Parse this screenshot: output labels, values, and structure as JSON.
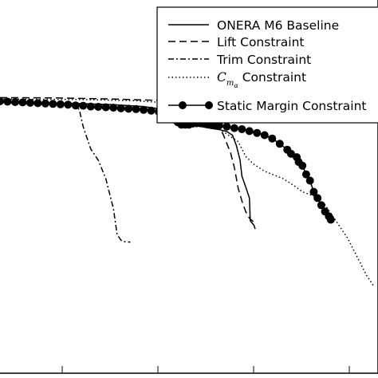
{
  "chart_data": {
    "type": "line",
    "xlim": [
      0,
      1
    ],
    "ylim": [
      0,
      1
    ],
    "grid": false,
    "legend_position": "top-right",
    "series": [
      {
        "name": "ONERA M6 Baseline",
        "style": "solid",
        "markers": false,
        "points": [
          [
            0.0,
            0.725
          ],
          [
            0.1,
            0.724
          ],
          [
            0.2,
            0.722
          ],
          [
            0.3,
            0.719
          ],
          [
            0.38,
            0.714
          ],
          [
            0.42,
            0.708
          ],
          [
            0.45,
            0.695
          ],
          [
            0.48,
            0.677
          ],
          [
            0.52,
            0.662
          ],
          [
            0.56,
            0.655
          ],
          [
            0.58,
            0.652
          ],
          [
            0.6,
            0.647
          ],
          [
            0.615,
            0.637
          ],
          [
            0.625,
            0.61
          ],
          [
            0.635,
            0.57
          ],
          [
            0.64,
            0.527
          ],
          [
            0.65,
            0.498
          ],
          [
            0.66,
            0.468
          ],
          [
            0.662,
            0.407
          ],
          [
            0.672,
            0.395
          ],
          [
            0.675,
            0.385
          ]
        ]
      },
      {
        "name": "Lift Constraint",
        "style": "dashed",
        "markers": false,
        "points": [
          [
            0.0,
            0.738
          ],
          [
            0.15,
            0.737
          ],
          [
            0.3,
            0.734
          ],
          [
            0.4,
            0.731
          ],
          [
            0.46,
            0.728
          ],
          [
            0.5,
            0.722
          ],
          [
            0.53,
            0.712
          ],
          [
            0.55,
            0.698
          ],
          [
            0.57,
            0.675
          ],
          [
            0.59,
            0.64
          ],
          [
            0.61,
            0.59
          ],
          [
            0.62,
            0.55
          ],
          [
            0.63,
            0.495
          ],
          [
            0.64,
            0.46
          ],
          [
            0.65,
            0.432
          ],
          [
            0.66,
            0.414
          ],
          [
            0.67,
            0.405
          ]
        ]
      },
      {
        "name": "Trim Constraint",
        "style": "dashdot",
        "markers": false,
        "points": [
          [
            0.0,
            0.726
          ],
          [
            0.1,
            0.724
          ],
          [
            0.17,
            0.721
          ],
          [
            0.2,
            0.718
          ],
          [
            0.21,
            0.705
          ],
          [
            0.22,
            0.66
          ],
          [
            0.24,
            0.6
          ],
          [
            0.26,
            0.57
          ],
          [
            0.28,
            0.52
          ],
          [
            0.3,
            0.44
          ],
          [
            0.31,
            0.37
          ],
          [
            0.32,
            0.355
          ],
          [
            0.33,
            0.351
          ],
          [
            0.345,
            0.35
          ]
        ]
      },
      {
        "name": "$C_{m_\\alpha}$ Constraint",
        "style": "dotted",
        "markers": false,
        "points": [
          [
            0.0,
            0.734
          ],
          [
            0.2,
            0.733
          ],
          [
            0.35,
            0.73
          ],
          [
            0.44,
            0.724
          ],
          [
            0.5,
            0.705
          ],
          [
            0.55,
            0.678
          ],
          [
            0.6,
            0.64
          ],
          [
            0.63,
            0.62
          ],
          [
            0.65,
            0.58
          ],
          [
            0.67,
            0.56
          ],
          [
            0.7,
            0.54
          ],
          [
            0.75,
            0.52
          ],
          [
            0.78,
            0.5
          ],
          [
            0.8,
            0.485
          ],
          [
            0.84,
            0.47
          ],
          [
            0.86,
            0.45
          ],
          [
            0.88,
            0.42
          ],
          [
            0.92,
            0.36
          ],
          [
            0.95,
            0.3
          ],
          [
            0.97,
            0.26
          ],
          [
            0.99,
            0.23
          ]
        ]
      },
      {
        "name": "Static Margin Constraint",
        "style": "solid",
        "markers": true,
        "points": [
          [
            0.0,
            0.728
          ],
          [
            0.02,
            0.727
          ],
          [
            0.04,
            0.726
          ],
          [
            0.06,
            0.725
          ],
          [
            0.08,
            0.724
          ],
          [
            0.1,
            0.723
          ],
          [
            0.12,
            0.722
          ],
          [
            0.14,
            0.721
          ],
          [
            0.16,
            0.72
          ],
          [
            0.18,
            0.719
          ],
          [
            0.2,
            0.717
          ],
          [
            0.22,
            0.716
          ],
          [
            0.24,
            0.714
          ],
          [
            0.26,
            0.713
          ],
          [
            0.28,
            0.712
          ],
          [
            0.3,
            0.711
          ],
          [
            0.32,
            0.709
          ],
          [
            0.34,
            0.708
          ],
          [
            0.36,
            0.707
          ],
          [
            0.38,
            0.705
          ],
          [
            0.4,
            0.703
          ],
          [
            0.42,
            0.7
          ],
          [
            0.44,
            0.695
          ],
          [
            0.45,
            0.687
          ],
          [
            0.46,
            0.679
          ],
          [
            0.47,
            0.672
          ],
          [
            0.48,
            0.665
          ],
          [
            0.49,
            0.665
          ],
          [
            0.5,
            0.665
          ],
          [
            0.51,
            0.668
          ],
          [
            0.52,
            0.669
          ],
          [
            0.53,
            0.669
          ],
          [
            0.54,
            0.668
          ],
          [
            0.55,
            0.667
          ],
          [
            0.56,
            0.666
          ],
          [
            0.57,
            0.664
          ],
          [
            0.58,
            0.663
          ],
          [
            0.6,
            0.66
          ],
          [
            0.62,
            0.656
          ],
          [
            0.64,
            0.653
          ],
          [
            0.66,
            0.648
          ],
          [
            0.68,
            0.643
          ],
          [
            0.7,
            0.637
          ],
          [
            0.72,
            0.628
          ],
          [
            0.74,
            0.614
          ],
          [
            0.76,
            0.598
          ],
          [
            0.77,
            0.587
          ],
          [
            0.785,
            0.578
          ],
          [
            0.79,
            0.565
          ],
          [
            0.8,
            0.555
          ],
          [
            0.81,
            0.532
          ],
          [
            0.82,
            0.515
          ],
          [
            0.83,
            0.485
          ],
          [
            0.84,
            0.468
          ],
          [
            0.85,
            0.449
          ],
          [
            0.86,
            0.432
          ],
          [
            0.87,
            0.419
          ],
          [
            0.875,
            0.41
          ]
        ]
      }
    ]
  },
  "legend": {
    "entries": [
      {
        "label": "ONERA M6 Baseline"
      },
      {
        "label": "Lift Constraint"
      },
      {
        "label": "Trim Constraint"
      },
      {
        "label_symbol": "C",
        "label_sub": "m",
        "label_subsub": "α",
        "label_suffix": " Constraint"
      },
      {
        "label": "Static Margin Constraint"
      }
    ]
  }
}
